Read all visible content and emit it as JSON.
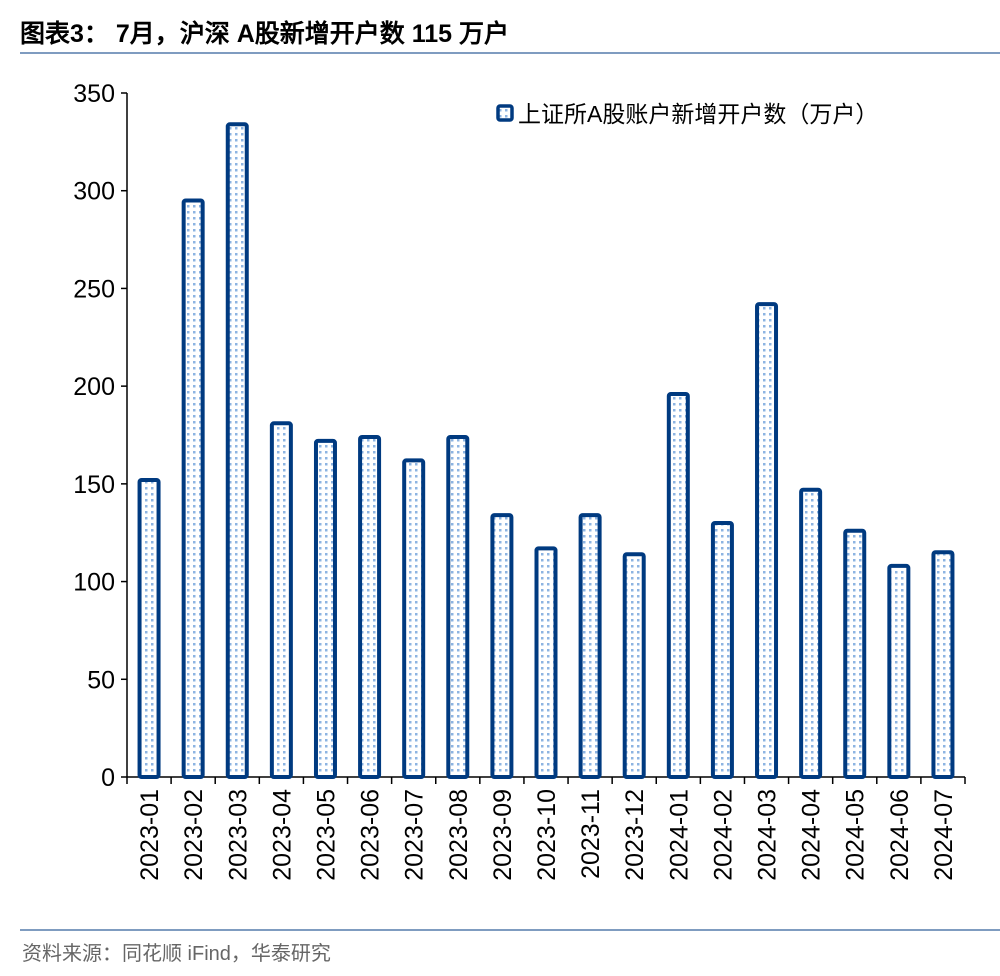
{
  "title": "图表3： 7月，沪深 A股新增开户数 115 万户",
  "source": "资料来源：同花顺 iFind，华泰研究",
  "chart_data": {
    "type": "bar",
    "categories": [
      "2023-01",
      "2023-02",
      "2023-03",
      "2023-04",
      "2023-05",
      "2023-06",
      "2023-07",
      "2023-08",
      "2023-09",
      "2023-10",
      "2023-11",
      "2023-12",
      "2024-01",
      "2024-02",
      "2024-03",
      "2024-04",
      "2024-05",
      "2024-06",
      "2024-07"
    ],
    "series": [
      {
        "name": "上证所A股账户新增开户数（万户）",
        "values": [
          152,
          295,
          334,
          181,
          172,
          174,
          162,
          174,
          134,
          117,
          134,
          114,
          196,
          130,
          242,
          147,
          126,
          108,
          115
        ]
      }
    ],
    "ylim": [
      0,
      350
    ],
    "yticks": [
      0,
      50,
      100,
      150,
      200,
      250,
      300,
      350
    ],
    "grid": false,
    "legend": "top-right",
    "colors": {
      "bar_border": "#003a80",
      "bar_fill_dots": "#8db4e2"
    }
  }
}
